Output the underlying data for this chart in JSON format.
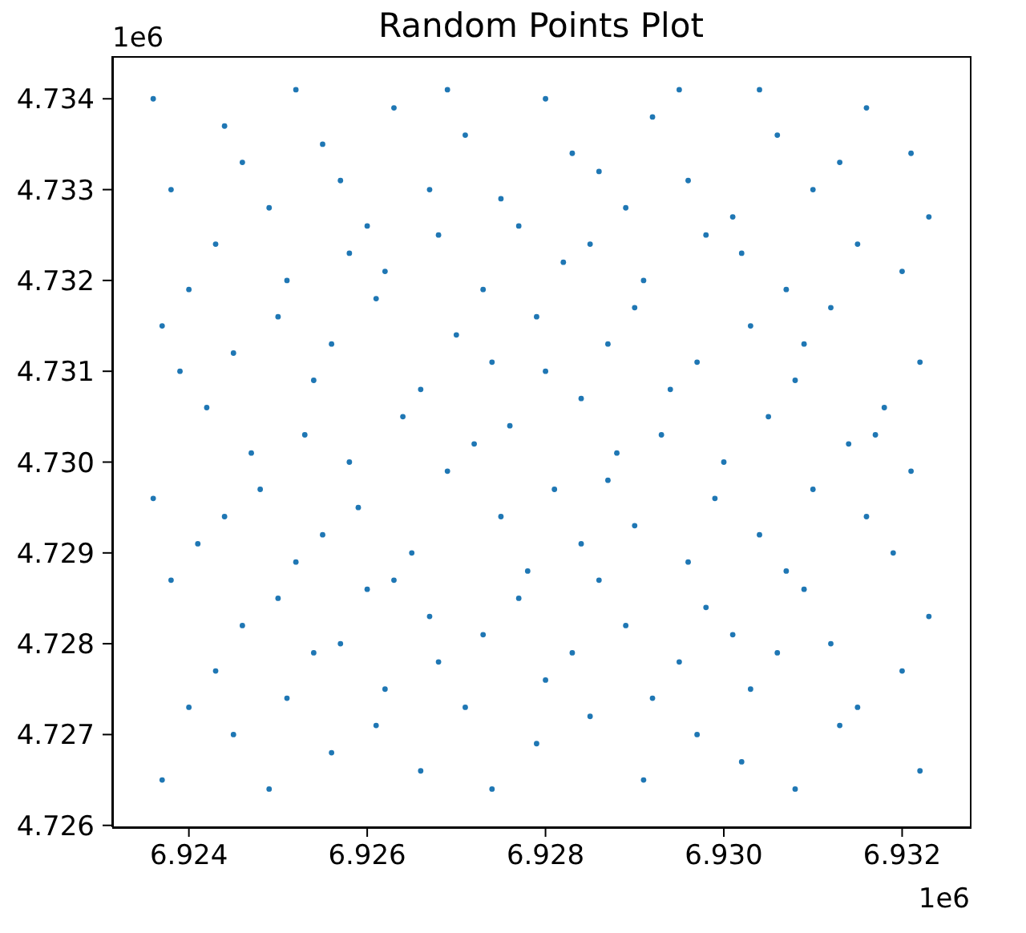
{
  "chart_data": {
    "type": "scatter",
    "title": "Random Points Plot",
    "annotations": [
      "1e6",
      "1e6"
    ],
    "color": "#1f77b4",
    "marker": "circle",
    "xlim": [
      6.92314,
      6.93276
    ],
    "ylim": [
      4.72598,
      4.73447
    ],
    "xticks": [
      6.924,
      6.926,
      6.928,
      {
        "value": 6.93,
        "label": "6.930"
      },
      6.932
    ],
    "yticks": [
      4.726,
      4.727,
      4.728,
      4.729,
      {
        "value": 4.73,
        "label": "4.730"
      },
      4.731,
      4.732,
      4.733,
      4.734
    ],
    "x": [
      6.9237,
      6.9245,
      6.9249,
      6.9256,
      6.9261,
      6.9266,
      6.9274,
      6.9279,
      6.9285,
      6.9291,
      6.9297,
      6.9302,
      6.9308,
      6.9313,
      6.9322,
      6.924,
      6.9243,
      6.9251,
      6.9254,
      6.9262,
      6.9268,
      6.9271,
      6.928,
      6.9283,
      6.9292,
      6.9295,
      6.9303,
      6.9306,
      6.9315,
      6.932,
      6.9238,
      6.9246,
      6.925,
      6.9257,
      6.926,
      6.9267,
      6.9273,
      6.9277,
      6.9286,
      6.9289,
      6.9298,
      6.9301,
      6.9309,
      6.9312,
      6.9323,
      6.9241,
      6.9244,
      6.9252,
      6.9255,
      6.9263,
      6.9265,
      6.9275,
      6.9278,
      6.9284,
      6.929,
      6.9296,
      6.9304,
      6.9307,
      6.9316,
      6.9319,
      6.9236,
      6.9247,
      6.9248,
      6.9258,
      6.9259,
      6.9269,
      6.9272,
      6.9281,
      6.9287,
      6.9288,
      6.9299,
      6.93,
      6.931,
      6.9314,
      6.9321,
      6.9239,
      6.9242,
      6.9253,
      6.9254,
      6.9264,
      6.9266,
      6.9276,
      6.928,
      6.9284,
      6.9293,
      6.9294,
      6.9305,
      6.9308,
      6.9317,
      6.9318,
      6.9237,
      6.9245,
      6.925,
      6.9256,
      6.9261,
      6.927,
      6.9274,
      6.9279,
      6.9287,
      6.929,
      6.9297,
      6.9303,
      6.9309,
      6.9312,
      6.9322,
      6.924,
      6.9243,
      6.9251,
      6.9258,
      6.9262,
      6.9268,
      6.9273,
      6.9282,
      6.9285,
      6.9291,
      6.9298,
      6.9302,
      6.9307,
      6.9315,
      6.932,
      6.9238,
      6.9246,
      6.9249,
      6.9257,
      6.926,
      6.9267,
      6.9275,
      6.9277,
      6.9286,
      6.9289,
      6.9296,
      6.9301,
      6.931,
      6.9313,
      6.9323,
      6.9236,
      6.9244,
      6.9252,
      6.9255,
      6.9263,
      6.9269,
      6.9271,
      6.928,
      6.9283,
      6.9292,
      6.9295,
      6.9304,
      6.9306,
      6.9316,
      6.9321
    ],
    "values": [
      4.7265,
      4.727,
      4.7264,
      4.7268,
      4.7271,
      4.7266,
      4.7264,
      4.7269,
      4.7272,
      4.7265,
      4.727,
      4.7267,
      4.7264,
      4.7271,
      4.7266,
      4.7273,
      4.7277,
      4.7274,
      4.7279,
      4.7275,
      4.7278,
      4.7273,
      4.7276,
      4.7279,
      4.7274,
      4.7278,
      4.7275,
      4.7279,
      4.7273,
      4.7277,
      4.7287,
      4.7282,
      4.7285,
      4.728,
      4.7286,
      4.7283,
      4.7281,
      4.7285,
      4.7287,
      4.7282,
      4.7284,
      4.7281,
      4.7286,
      4.728,
      4.7283,
      4.7291,
      4.7294,
      4.7289,
      4.7292,
      4.7287,
      4.729,
      4.7294,
      4.7288,
      4.7291,
      4.7293,
      4.7289,
      4.7292,
      4.7288,
      4.7294,
      4.729,
      4.7296,
      4.7301,
      4.7297,
      4.73,
      4.7295,
      4.7299,
      4.7302,
      4.7297,
      4.7298,
      4.7301,
      4.7296,
      4.73,
      4.7297,
      4.7302,
      4.7299,
      4.731,
      4.7306,
      4.7303,
      4.7309,
      4.7305,
      4.7308,
      4.7304,
      4.731,
      4.7307,
      4.7303,
      4.7308,
      4.7305,
      4.7309,
      4.7303,
      4.7306,
      4.7315,
      4.7312,
      4.7316,
      4.7313,
      4.7318,
      4.7314,
      4.7311,
      4.7316,
      4.7313,
      4.7317,
      4.7311,
      4.7315,
      4.7313,
      4.7317,
      4.7311,
      4.7319,
      4.7324,
      4.732,
      4.7323,
      4.7321,
      4.7325,
      4.7319,
      4.7322,
      4.7324,
      4.732,
      4.7325,
      4.7323,
      4.7319,
      4.7324,
      4.7321,
      4.733,
      4.7333,
      4.7328,
      4.7331,
      4.7326,
      4.733,
      4.7329,
      4.7326,
      4.7332,
      4.7328,
      4.7331,
      4.7327,
      4.733,
      4.7333,
      4.7327,
      4.734,
      4.7337,
      4.7341,
      4.7335,
      4.7339,
      4.7341,
      4.7336,
      4.734,
      4.7334,
      4.7338,
      4.7341,
      4.7341,
      4.7336,
      4.7339,
      4.7334
    ]
  }
}
